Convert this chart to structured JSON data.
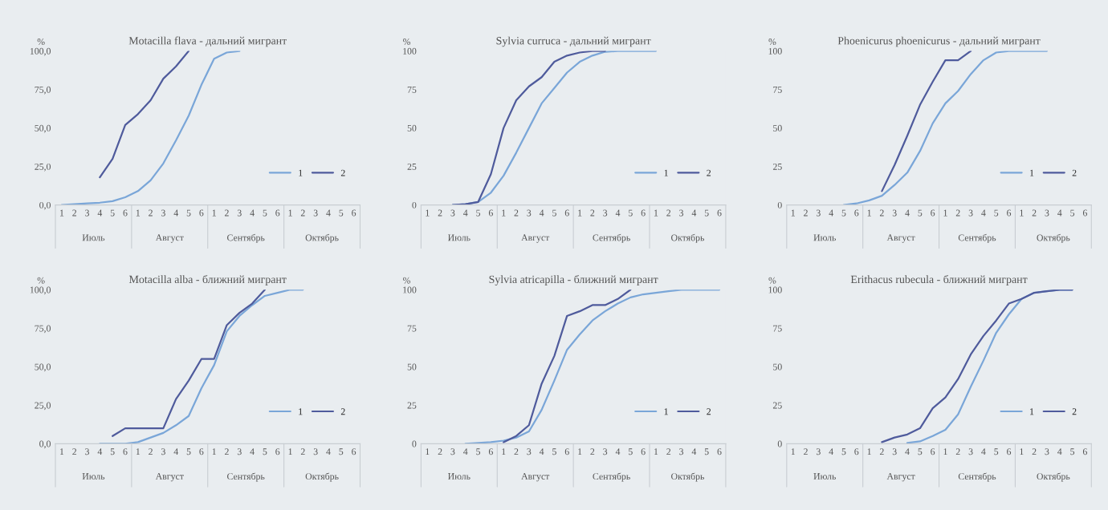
{
  "chart_data": [
    {
      "type": "line",
      "title": "Motacilla flava - дальний мигрант",
      "ylabel": "%",
      "categories": [
        "1",
        "2",
        "3",
        "4",
        "5",
        "6",
        "1",
        "2",
        "3",
        "4",
        "5",
        "6",
        "1",
        "2",
        "3",
        "4",
        "5",
        "6",
        "1",
        "2",
        "3",
        "4",
        "5",
        "6"
      ],
      "annotations": [
        "Июль",
        "Август",
        "Сентябрь",
        "Октябрь"
      ],
      "ylim": [
        0,
        100
      ],
      "yticks": [
        {
          "value": 0,
          "label": "0,0"
        },
        {
          "value": 25,
          "label": "25,0"
        },
        {
          "value": 50,
          "label": "50,0"
        },
        {
          "value": 75,
          "label": "75,0"
        },
        {
          "value": 100,
          "label": "100,0"
        }
      ],
      "grid": false,
      "legend": "bottom right",
      "series": [
        {
          "name": "1",
          "color": "#7aa6d8",
          "values": [
            0,
            0.5,
            1,
            1.5,
            2.5,
            5,
            9,
            16,
            27,
            42,
            58,
            78,
            95,
            99,
            100,
            null,
            null,
            null,
            null,
            null,
            null,
            null,
            null,
            null
          ]
        },
        {
          "name": "2",
          "color": "#4f5b9c",
          "values": [
            null,
            null,
            null,
            18,
            30,
            52,
            59,
            68,
            82,
            90,
            100,
            null,
            null,
            null,
            null,
            null,
            null,
            null,
            null,
            null,
            null,
            null,
            null,
            null
          ]
        }
      ]
    },
    {
      "type": "line",
      "title": "Sylvia curruca - дальний мигрант",
      "ylabel": "%",
      "categories": [
        "1",
        "2",
        "3",
        "4",
        "5",
        "6",
        "1",
        "2",
        "3",
        "4",
        "5",
        "6",
        "1",
        "2",
        "3",
        "4",
        "5",
        "6",
        "1",
        "2",
        "3",
        "4",
        "5",
        "6"
      ],
      "annotations": [
        "Июль",
        "Август",
        "Сентябрь",
        "Октябрь"
      ],
      "ylim": [
        0,
        100
      ],
      "yticks": [
        0,
        25,
        50,
        75,
        100
      ],
      "grid": false,
      "legend": "bottom right",
      "series": [
        {
          "name": "1",
          "color": "#7aa6d8",
          "values": [
            null,
            null,
            0,
            0.5,
            2,
            8,
            19,
            34,
            50,
            66,
            76,
            86,
            93,
            97,
            99.5,
            100,
            100,
            100,
            100,
            null,
            null,
            null,
            null,
            null
          ]
        },
        {
          "name": "2",
          "color": "#4f5b9c",
          "values": [
            null,
            null,
            0,
            0.5,
            2,
            20,
            50,
            68,
            77,
            83,
            93,
            97,
            99,
            100,
            100,
            null,
            null,
            null,
            null,
            null,
            null,
            null,
            null,
            null
          ]
        }
      ]
    },
    {
      "type": "line",
      "title": "Phoenicurus phoenicurus - дальний мигрант",
      "ylabel": "%",
      "categories": [
        "1",
        "2",
        "3",
        "4",
        "5",
        "6",
        "1",
        "2",
        "3",
        "4",
        "5",
        "6",
        "1",
        "2",
        "3",
        "4",
        "5",
        "6",
        "1",
        "2",
        "3",
        "4",
        "5",
        "6"
      ],
      "annotations": [
        "Июль",
        "Август",
        "Сентябрь",
        "Октябрь"
      ],
      "ylim": [
        0,
        100
      ],
      "yticks": [
        0,
        25,
        50,
        75,
        100
      ],
      "grid": false,
      "legend": "bottom right",
      "series": [
        {
          "name": "1",
          "color": "#7aa6d8",
          "values": [
            null,
            null,
            null,
            null,
            0,
            1,
            3,
            6,
            13,
            21,
            35,
            53,
            66,
            74,
            85,
            94,
            99,
            100,
            100,
            100,
            100,
            null,
            null,
            null
          ]
        },
        {
          "name": "2",
          "color": "#4f5b9c",
          "values": [
            null,
            null,
            null,
            null,
            null,
            null,
            null,
            9,
            26,
            45,
            65,
            80,
            94,
            94,
            100,
            null,
            null,
            null,
            null,
            null,
            null,
            null,
            null,
            null
          ]
        }
      ]
    },
    {
      "type": "line",
      "title": "Motacilla alba - ближний мигрант",
      "ylabel": "%",
      "categories": [
        "1",
        "2",
        "3",
        "4",
        "5",
        "6",
        "1",
        "2",
        "3",
        "4",
        "5",
        "6",
        "1",
        "2",
        "3",
        "4",
        "5",
        "6",
        "1",
        "2",
        "3",
        "4",
        "5",
        "6"
      ],
      "annotations": [
        "Июль",
        "Август",
        "Сентябрь",
        "Октябрь"
      ],
      "ylim": [
        0,
        100
      ],
      "yticks": [
        {
          "value": 0,
          "label": "0,0"
        },
        {
          "value": 25,
          "label": "25,0"
        },
        {
          "value": 50,
          "label": "50,0"
        },
        {
          "value": 75,
          "label": "75,0"
        },
        {
          "value": 100,
          "label": "100,0"
        }
      ],
      "grid": false,
      "legend": "bottom right",
      "series": [
        {
          "name": "1",
          "color": "#7aa6d8",
          "values": [
            null,
            null,
            null,
            0,
            0,
            0,
            1,
            4,
            7,
            12,
            18,
            36,
            51,
            73,
            83,
            90,
            96,
            98,
            100,
            100,
            null,
            null,
            null,
            null
          ]
        },
        {
          "name": "2",
          "color": "#4f5b9c",
          "values": [
            null,
            null,
            null,
            null,
            5,
            10,
            10,
            10,
            10,
            29,
            41,
            55,
            55,
            77,
            85,
            91,
            100,
            null,
            null,
            null,
            null,
            null,
            null,
            null
          ]
        }
      ]
    },
    {
      "type": "line",
      "title": "Sylvia atricapilla - ближний мигрант",
      "ylabel": "%",
      "categories": [
        "1",
        "2",
        "3",
        "4",
        "5",
        "6",
        "1",
        "2",
        "3",
        "4",
        "5",
        "6",
        "1",
        "2",
        "3",
        "4",
        "5",
        "6",
        "1",
        "2",
        "3",
        "4",
        "5",
        "6"
      ],
      "annotations": [
        "Июль",
        "Август",
        "Сентябрь",
        "Октябрь"
      ],
      "ylim": [
        0,
        100
      ],
      "yticks": [
        0,
        25,
        50,
        75,
        100
      ],
      "grid": false,
      "legend": "bottom right",
      "series": [
        {
          "name": "1",
          "color": "#7aa6d8",
          "values": [
            null,
            null,
            null,
            0,
            0.5,
            1,
            2,
            4,
            8,
            22,
            41,
            61,
            71,
            80,
            86,
            91,
            95,
            97,
            98,
            99,
            100,
            100,
            100,
            100
          ]
        },
        {
          "name": "2",
          "color": "#4f5b9c",
          "values": [
            null,
            null,
            null,
            null,
            null,
            null,
            1,
            5,
            12,
            39,
            57,
            83,
            86,
            90,
            90,
            94,
            100,
            null,
            null,
            null,
            null,
            null,
            null,
            null
          ]
        }
      ]
    },
    {
      "type": "line",
      "title": "Erithacus rubecula - ближний мигрант",
      "ylabel": "%",
      "categories": [
        "1",
        "2",
        "3",
        "4",
        "5",
        "6",
        "1",
        "2",
        "3",
        "4",
        "5",
        "6",
        "1",
        "2",
        "3",
        "4",
        "5",
        "6",
        "1",
        "2",
        "3",
        "4",
        "5",
        "6"
      ],
      "annotations": [
        "Июль",
        "Август",
        "Сентябрь",
        "Октябрь"
      ],
      "ylim": [
        0,
        100
      ],
      "yticks": [
        0,
        25,
        50,
        75,
        100
      ],
      "grid": false,
      "legend": "bottom right",
      "series": [
        {
          "name": "1",
          "color": "#7aa6d8",
          "values": [
            null,
            null,
            null,
            null,
            null,
            null,
            null,
            null,
            null,
            0.5,
            1.5,
            5,
            9,
            19,
            37,
            54,
            72,
            84,
            94,
            98,
            99,
            100,
            100,
            null
          ]
        },
        {
          "name": "2",
          "color": "#4f5b9c",
          "values": [
            null,
            null,
            null,
            null,
            null,
            null,
            null,
            1,
            4,
            6,
            10,
            23,
            30,
            42,
            58,
            70,
            80,
            91,
            94,
            98,
            99,
            100,
            100,
            null
          ]
        }
      ]
    }
  ]
}
